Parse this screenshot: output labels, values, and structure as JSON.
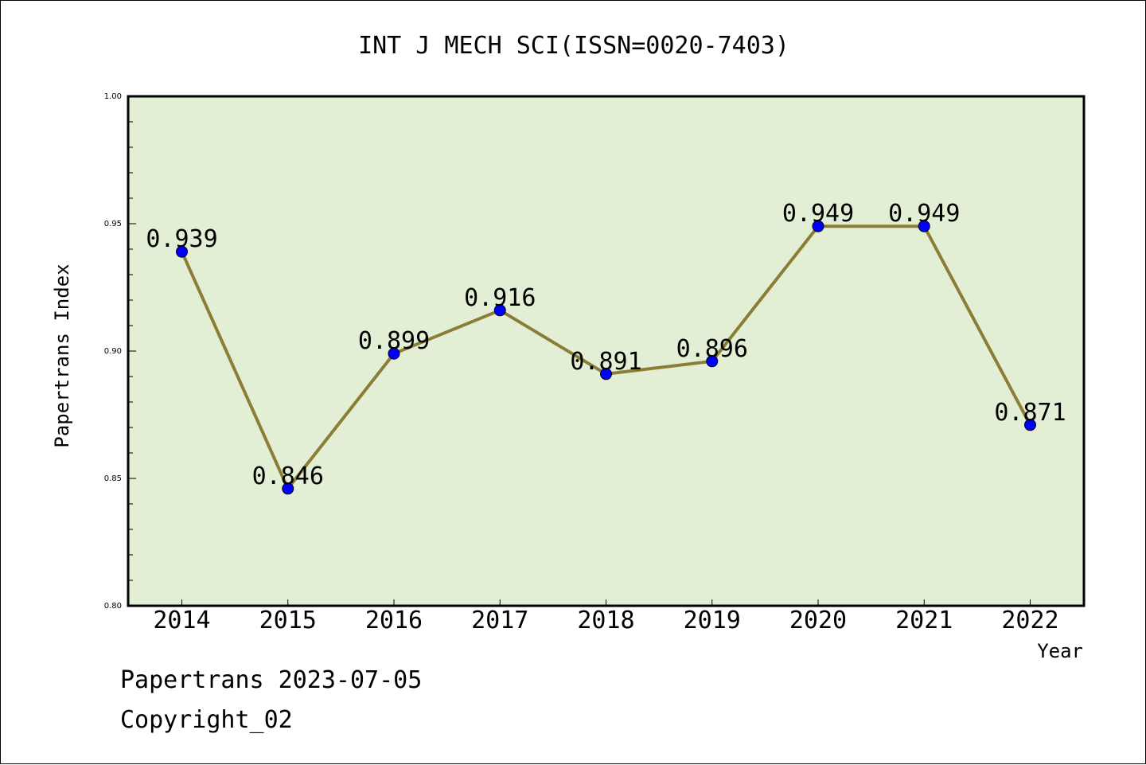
{
  "chart_data": {
    "type": "line",
    "title": "INT J MECH SCI(ISSN=0020-7403)",
    "xlabel": "Year",
    "ylabel": "Papertrans Index",
    "categories": [
      "2014",
      "2015",
      "2016",
      "2017",
      "2018",
      "2019",
      "2020",
      "2021",
      "2022"
    ],
    "values": [
      0.939,
      0.846,
      0.899,
      0.916,
      0.891,
      0.896,
      0.949,
      0.949,
      0.871
    ],
    "data_labels": [
      "0.939",
      "0.846",
      "0.899",
      "0.916",
      "0.891",
      "0.896",
      "0.949",
      "0.949",
      "0.871"
    ],
    "ylim": [
      0.8,
      1.0
    ],
    "yticks": [
      0.8,
      0.85,
      0.9,
      0.95,
      1.0
    ],
    "ytick_labels": [
      "0.80",
      "0.85",
      "0.90",
      "0.95",
      "1.00"
    ],
    "grid": false,
    "colors": {
      "plot_background": "#e2efd5",
      "line": "#8b7d35",
      "marker": "#0000ff"
    }
  },
  "footer": {
    "line1": "Papertrans 2023-07-05",
    "line2": "Copyright_02"
  }
}
